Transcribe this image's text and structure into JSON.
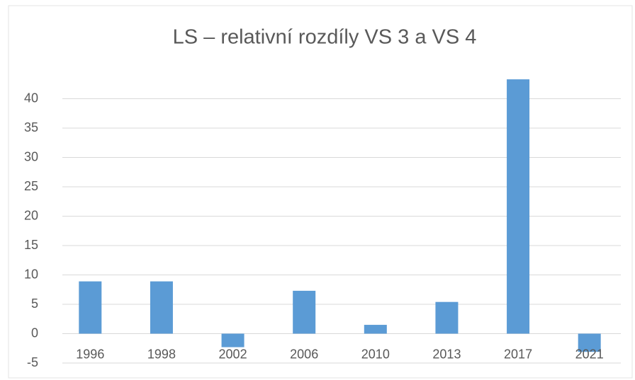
{
  "chart_data": {
    "type": "bar",
    "title": "LS – relativní rozdíly VS 3 a VS 4",
    "categories": [
      "1996",
      "1998",
      "2002",
      "2006",
      "2010",
      "2013",
      "2017",
      "2021"
    ],
    "values": [
      8.9,
      8.9,
      -2.3,
      7.3,
      1.5,
      5.4,
      43.3,
      -3.1
    ],
    "color": "#5b9bd5",
    "ylim": [
      -5,
      45
    ],
    "yticks": [
      -5,
      0,
      5,
      10,
      15,
      20,
      25,
      30,
      35,
      40
    ],
    "grid": true
  }
}
